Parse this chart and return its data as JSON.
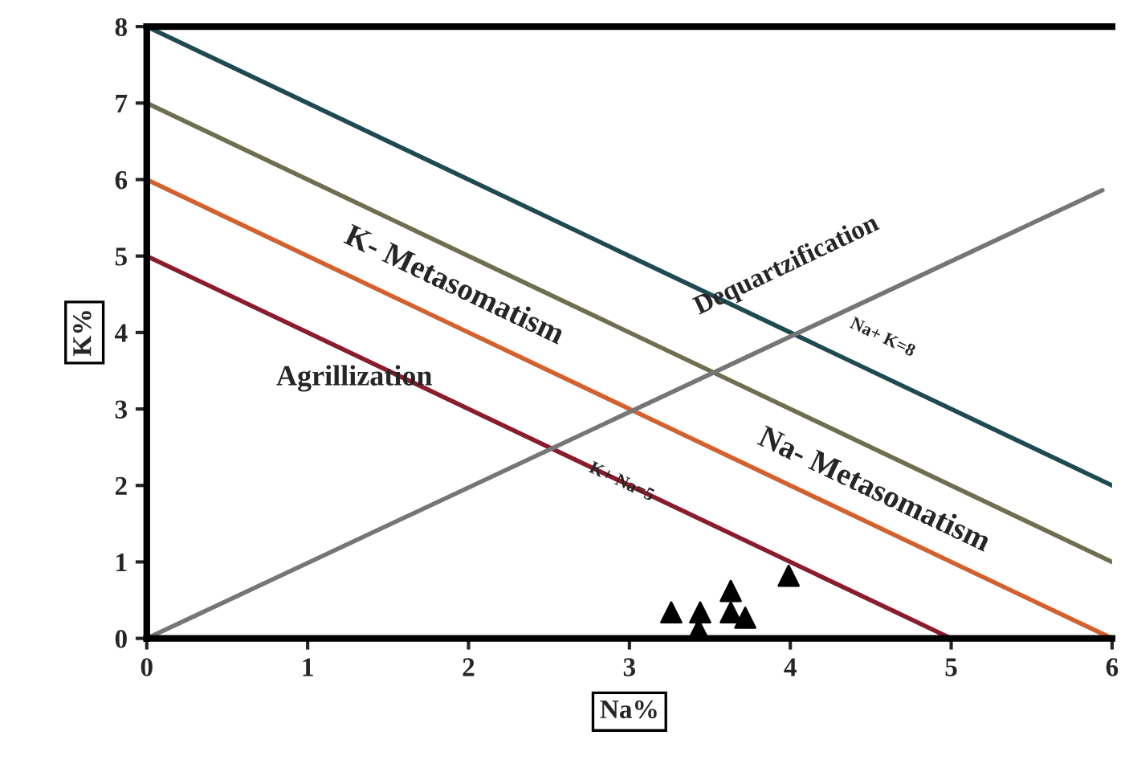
{
  "chart_data": {
    "type": "line",
    "xlabel": "Na%",
    "ylabel": "K%",
    "xlim": [
      0,
      6
    ],
    "ylim": [
      0,
      8
    ],
    "xticks": [
      0,
      1,
      2,
      3,
      4,
      5,
      6
    ],
    "yticks": [
      0,
      1,
      2,
      3,
      4,
      5,
      6,
      7,
      8
    ],
    "grid": false,
    "legend": false,
    "line_style": "solid",
    "marker": "none",
    "series": [
      {
        "color": "#1f4a52",
        "x": [
          0,
          6
        ],
        "values": [
          8,
          2
        ]
      },
      {
        "color": "#6e6e50",
        "x": [
          0,
          6
        ],
        "values": [
          7,
          1
        ]
      },
      {
        "color": "#d4602e",
        "x": [
          0,
          6
        ],
        "values": [
          6,
          0
        ]
      },
      {
        "color": "#8a1c2c",
        "x": [
          0,
          5
        ],
        "values": [
          5,
          0
        ]
      },
      {
        "color": "#767676",
        "x": [
          0,
          5.94
        ],
        "values": [
          0,
          5.86
        ]
      },
      {
        "type": "scatter",
        "color": "#000000",
        "marker": "triangle",
        "x": [
          3.26,
          3.44,
          3.43,
          3.63,
          3.63,
          3.72,
          3.99
        ],
        "values": [
          0.34,
          0.34,
          0.11,
          0.62,
          0.34,
          0.27,
          0.82
        ]
      }
    ],
    "annotations": [
      "K- Metasomatism",
      "Agrillization",
      "Dequartzification",
      "Na+ K=8",
      "Na- Metasomatism",
      {
        "text": "K+ Na=5",
        "x": 2.95,
        "y": 2.04
      }
    ]
  }
}
